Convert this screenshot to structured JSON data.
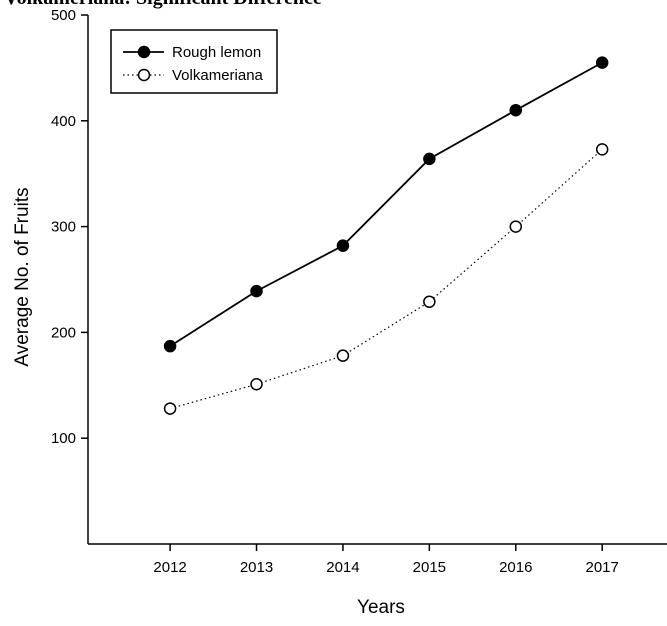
{
  "caption": "Volkameriana: Significant Difference",
  "chart_data": {
    "type": "line",
    "x": [
      2012,
      2013,
      2014,
      2015,
      2016,
      2017
    ],
    "series": [
      {
        "name": "Rough lemon",
        "values": [
          187,
          239,
          282,
          364,
          410,
          455
        ],
        "marker": "filled-circle",
        "line": "solid"
      },
      {
        "name": "Volkameriana",
        "values": [
          128,
          151,
          178,
          229,
          300,
          373
        ],
        "marker": "open-circle",
        "line": "dotted"
      }
    ],
    "xlabel": "Years",
    "ylabel": "Average No. of Fruits",
    "xlim": [
      2011.05,
      2017.75
    ],
    "ylim": [
      0,
      500
    ],
    "yticks": [
      100,
      200,
      300,
      400,
      500
    ],
    "xticks": [
      2012,
      2013,
      2014,
      2015,
      2016,
      2017
    ],
    "grid": false,
    "legend_position": "top-left"
  }
}
